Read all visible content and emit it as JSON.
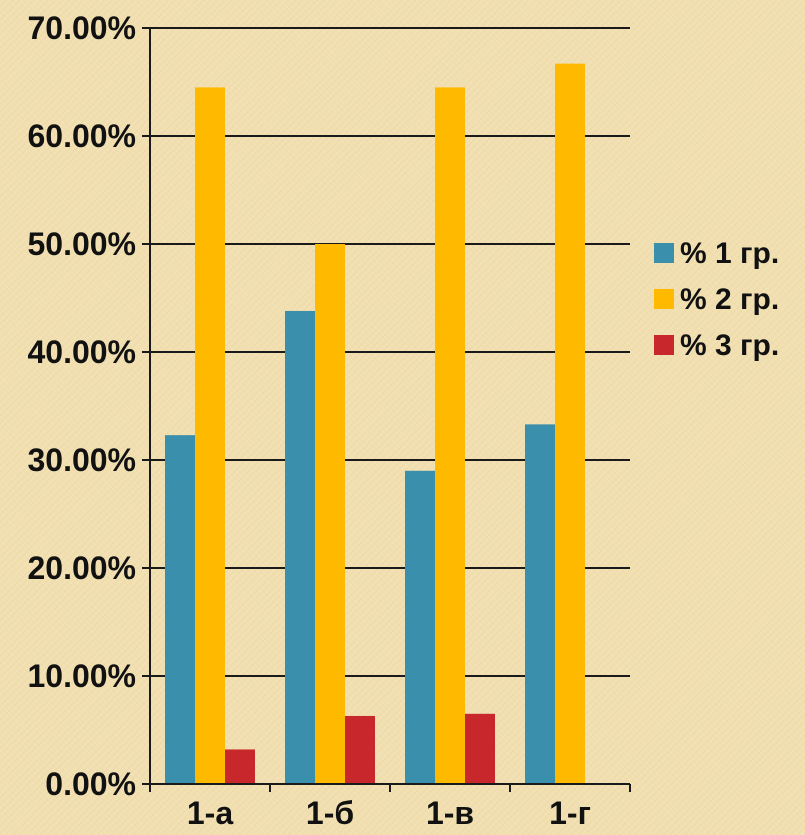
{
  "chart_data": {
    "type": "bar",
    "title": "",
    "xlabel": "",
    "ylabel": "",
    "categories": [
      "1-а",
      "1-б",
      "1-в",
      "1-г"
    ],
    "series": [
      {
        "name": "% 1 гр.",
        "color": "#3a90ac",
        "values": [
          32.3,
          43.8,
          29.0,
          33.3
        ]
      },
      {
        "name": "% 2 гр.",
        "color": "#ffba00",
        "values": [
          64.5,
          50.0,
          64.5,
          66.7
        ]
      },
      {
        "name": "% 3 гр.",
        "color": "#c8282c",
        "values": [
          3.2,
          6.3,
          6.5,
          0
        ]
      }
    ],
    "ylim": [
      0,
      70
    ],
    "ytick_step": 10,
    "ytick_labels": [
      "0.00%",
      "10.00%",
      "20.00%",
      "30.00%",
      "40.00%",
      "50.00%",
      "60.00%",
      "70.00%"
    ],
    "grid": true,
    "legend_position": "right"
  }
}
